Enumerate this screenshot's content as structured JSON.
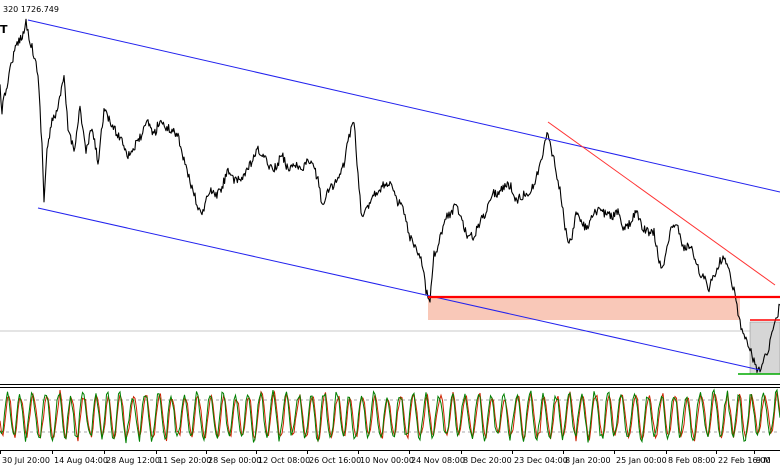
{
  "header": {
    "ohlc_text": "320 1726.749",
    "badge_text": "T"
  },
  "chart_data": {
    "type": "line",
    "title": "",
    "xlabel": "",
    "ylabel": "",
    "x_tick_labels": [
      "30 Jul 20:00",
      "14 Aug 04:00",
      "28 Aug 12:00",
      "11 Sep 20:00",
      "28 Sep 00:00",
      "12 Oct 08:00",
      "26 Oct 16:00",
      "10 Nov 00:00",
      "24 Nov 08:00",
      "8 Dec 20:00",
      "23 Dec 04:00",
      "8 Jan 20:00",
      "25 Jan 00:00",
      "8 Feb 08:00",
      "22 Feb 16:00",
      "9 M"
    ],
    "price_path": [
      [
        0,
        88
      ],
      [
        2,
        110
      ],
      [
        8,
        80
      ],
      [
        12,
        60
      ],
      [
        18,
        42
      ],
      [
        24,
        32
      ],
      [
        26,
        22
      ],
      [
        30,
        40
      ],
      [
        34,
        55
      ],
      [
        38,
        75
      ],
      [
        42,
        145
      ],
      [
        44,
        200
      ],
      [
        47,
        150
      ],
      [
        52,
        122
      ],
      [
        58,
        108
      ],
      [
        64,
        78
      ],
      [
        68,
        128
      ],
      [
        74,
        150
      ],
      [
        80,
        108
      ],
      [
        86,
        152
      ],
      [
        92,
        128
      ],
      [
        98,
        162
      ],
      [
        104,
        110
      ],
      [
        110,
        122
      ],
      [
        116,
        132
      ],
      [
        122,
        140
      ],
      [
        128,
        155
      ],
      [
        134,
        148
      ],
      [
        140,
        138
      ],
      [
        148,
        122
      ],
      [
        154,
        135
      ],
      [
        160,
        120
      ],
      [
        166,
        128
      ],
      [
        172,
        130
      ],
      [
        178,
        135
      ],
      [
        184,
        160
      ],
      [
        188,
        175
      ],
      [
        192,
        188
      ],
      [
        196,
        200
      ],
      [
        200,
        214
      ],
      [
        204,
        208
      ],
      [
        210,
        190
      ],
      [
        216,
        196
      ],
      [
        222,
        188
      ],
      [
        228,
        168
      ],
      [
        234,
        182
      ],
      [
        240,
        180
      ],
      [
        246,
        172
      ],
      [
        252,
        162
      ],
      [
        258,
        150
      ],
      [
        264,
        158
      ],
      [
        270,
        166
      ],
      [
        276,
        168
      ],
      [
        282,
        154
      ],
      [
        288,
        170
      ],
      [
        294,
        162
      ],
      [
        300,
        170
      ],
      [
        306,
        163
      ],
      [
        312,
        162
      ],
      [
        318,
        180
      ],
      [
        322,
        205
      ],
      [
        326,
        195
      ],
      [
        332,
        186
      ],
      [
        338,
        180
      ],
      [
        344,
        165
      ],
      [
        348,
        140
      ],
      [
        352,
        126
      ],
      [
        354,
        122
      ],
      [
        358,
        176
      ],
      [
        362,
        220
      ],
      [
        366,
        210
      ],
      [
        372,
        196
      ],
      [
        378,
        190
      ],
      [
        384,
        185
      ],
      [
        390,
        182
      ],
      [
        396,
        200
      ],
      [
        402,
        206
      ],
      [
        406,
        222
      ],
      [
        410,
        238
      ],
      [
        414,
        246
      ],
      [
        418,
        256
      ],
      [
        422,
        262
      ],
      [
        426,
        290
      ],
      [
        430,
        298
      ],
      [
        434,
        254
      ],
      [
        438,
        246
      ],
      [
        442,
        230
      ],
      [
        446,
        218
      ],
      [
        450,
        214
      ],
      [
        456,
        205
      ],
      [
        462,
        220
      ],
      [
        468,
        238
      ],
      [
        474,
        236
      ],
      [
        480,
        222
      ],
      [
        486,
        212
      ],
      [
        492,
        192
      ],
      [
        498,
        194
      ],
      [
        504,
        186
      ],
      [
        510,
        185
      ],
      [
        516,
        200
      ],
      [
        522,
        196
      ],
      [
        528,
        192
      ],
      [
        534,
        186
      ],
      [
        538,
        172
      ],
      [
        542,
        158
      ],
      [
        546,
        138
      ],
      [
        548,
        130
      ],
      [
        552,
        152
      ],
      [
        556,
        170
      ],
      [
        560,
        190
      ],
      [
        564,
        220
      ],
      [
        568,
        242
      ],
      [
        572,
        236
      ],
      [
        576,
        212
      ],
      [
        582,
        225
      ],
      [
        588,
        228
      ],
      [
        594,
        214
      ],
      [
        600,
        210
      ],
      [
        606,
        214
      ],
      [
        612,
        216
      ],
      [
        618,
        212
      ],
      [
        624,
        230
      ],
      [
        630,
        224
      ],
      [
        636,
        210
      ],
      [
        642,
        228
      ],
      [
        648,
        232
      ],
      [
        654,
        232
      ],
      [
        658,
        256
      ],
      [
        662,
        272
      ],
      [
        666,
        250
      ],
      [
        670,
        232
      ],
      [
        676,
        222
      ],
      [
        680,
        238
      ],
      [
        684,
        248
      ],
      [
        690,
        244
      ],
      [
        696,
        262
      ],
      [
        700,
        276
      ],
      [
        704,
        275
      ],
      [
        708,
        290
      ],
      [
        712,
        280
      ],
      [
        716,
        272
      ],
      [
        720,
        262
      ],
      [
        724,
        256
      ],
      [
        728,
        268
      ],
      [
        732,
        282
      ],
      [
        736,
        300
      ],
      [
        740,
        322
      ],
      [
        744,
        338
      ],
      [
        748,
        344
      ],
      [
        752,
        356
      ],
      [
        756,
        368
      ],
      [
        760,
        372
      ],
      [
        764,
        360
      ],
      [
        768,
        350
      ],
      [
        772,
        332
      ],
      [
        776,
        320
      ],
      [
        780,
        305
      ]
    ],
    "oscillator_series": {
      "line_color": "#008000",
      "signal_color": "#cc2200"
    },
    "channel_upper": [
      [
        28,
        20
      ],
      [
        780,
        192
      ]
    ],
    "channel_lower": [
      [
        38,
        208
      ],
      [
        760,
        370
      ]
    ],
    "trendline": [
      [
        548,
        122
      ],
      [
        775,
        285
      ]
    ],
    "support_level": {
      "from_x": 428,
      "to_x": 780,
      "y": 297
    },
    "resistance_level": {
      "from_x": 750,
      "to_x": 780,
      "y": 320
    },
    "support_zone": {
      "from_x": 428,
      "to_x": 740,
      "y_top": 298,
      "y_bottom": 320
    },
    "demand_zone": {
      "from_x": 750,
      "to_x": 780,
      "y_top": 322,
      "y_bottom": 374
    },
    "horizontal_grid_y": 331,
    "colors": {
      "price": "#000000",
      "channel": "#2222ee",
      "trendline": "#ff3333",
      "support": "#ff0000",
      "support_zone": "#f9c8b8",
      "demand_zone": "#d6d6d6"
    }
  }
}
